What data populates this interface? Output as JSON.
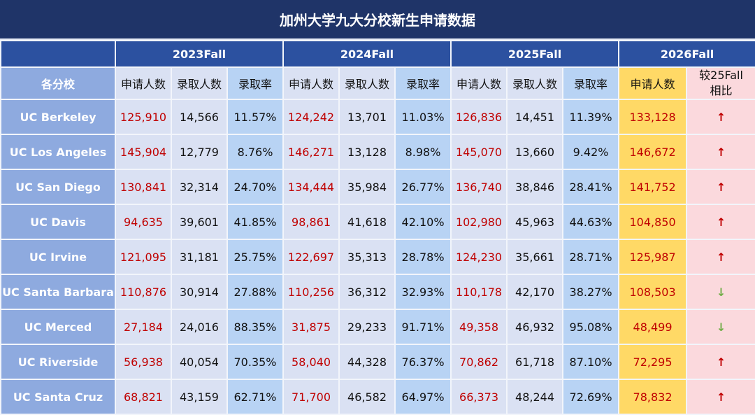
{
  "title": "加州大学九大分校新生申请数据",
  "years": [
    "2023Fall",
    "2024Fall",
    "2025Fall",
    "2026Fall"
  ],
  "headers": {
    "campus": "各分校",
    "applicants": "申请人数",
    "admitted": "录取人数",
    "rate": "录取率",
    "compare": "较25Fall相比"
  },
  "colors": {
    "title_bg": "#1f3468",
    "header_bg": "#2c51a0",
    "campus_bg": "#8eaadf",
    "cell_bg": "#dae1f3",
    "rate_bg": "#b8d3f4",
    "fall26_bg": "#ffd966",
    "compare_bg": "#fbd9dd",
    "up": "#c00000",
    "down": "#70ad47"
  },
  "rows": [
    {
      "campus": "UC Berkeley",
      "a23": "125,910",
      "r23": "14,566",
      "p23": "11.57%",
      "a24": "124,242",
      "r24": "13,701",
      "p24": "11.03%",
      "a25": "126,836",
      "r25": "14,451",
      "p25": "11.39%",
      "a26": "133,128",
      "trend": "↑",
      "dir": "up"
    },
    {
      "campus": "UC Los Angeles",
      "a23": "145,904",
      "r23": "12,779",
      "p23": "8.76%",
      "a24": "146,271",
      "r24": "13,128",
      "p24": "8.98%",
      "a25": "145,070",
      "r25": "13,660",
      "p25": "9.42%",
      "a26": "146,672",
      "trend": "↑",
      "dir": "up"
    },
    {
      "campus": "UC San Diego",
      "a23": "130,841",
      "r23": "32,314",
      "p23": "24.70%",
      "a24": "134,444",
      "r24": "35,984",
      "p24": "26.77%",
      "a25": "136,740",
      "r25": "38,846",
      "p25": "28.41%",
      "a26": "141,752",
      "trend": "↑",
      "dir": "up"
    },
    {
      "campus": "UC Davis",
      "a23": "94,635",
      "r23": "39,601",
      "p23": "41.85%",
      "a24": "98,861",
      "r24": "41,618",
      "p24": "42.10%",
      "a25": "102,980",
      "r25": "45,963",
      "p25": "44.63%",
      "a26": "104,850",
      "trend": "↑",
      "dir": "up"
    },
    {
      "campus": "UC Irvine",
      "a23": "121,095",
      "r23": "31,181",
      "p23": "25.75%",
      "a24": "122,697",
      "r24": "35,313",
      "p24": "28.78%",
      "a25": "124,230",
      "r25": "35,661",
      "p25": "28.71%",
      "a26": "125,987",
      "trend": "↑",
      "dir": "up"
    },
    {
      "campus": "UC Santa Barbara",
      "a23": "110,876",
      "r23": "30,914",
      "p23": "27.88%",
      "a24": "110,256",
      "r24": "36,312",
      "p24": "32.93%",
      "a25": "110,178",
      "r25": "42,170",
      "p25": "38.27%",
      "a26": "108,503",
      "trend": "↓",
      "dir": "down"
    },
    {
      "campus": "UC Merced",
      "a23": "27,184",
      "r23": "24,016",
      "p23": "88.35%",
      "a24": "31,875",
      "r24": "29,233",
      "p24": "91.71%",
      "a25": "49,358",
      "r25": "46,932",
      "p25": "95.08%",
      "a26": "48,499",
      "trend": "↓",
      "dir": "down"
    },
    {
      "campus": "UC Riverside",
      "a23": "56,938",
      "r23": "40,054",
      "p23": "70.35%",
      "a24": "58,040",
      "r24": "44,328",
      "p24": "76.37%",
      "a25": "70,862",
      "r25": "61,718",
      "p25": "87.10%",
      "a26": "72,295",
      "trend": "↑",
      "dir": "up"
    },
    {
      "campus": "UC Santa Cruz",
      "a23": "68,821",
      "r23": "43,159",
      "p23": "62.71%",
      "a24": "71,700",
      "r24": "46,582",
      "p24": "64.97%",
      "a25": "66,373",
      "r25": "48,244",
      "p25": "72.69%",
      "a26": "78,832",
      "trend": "↑",
      "dir": "up"
    }
  ]
}
